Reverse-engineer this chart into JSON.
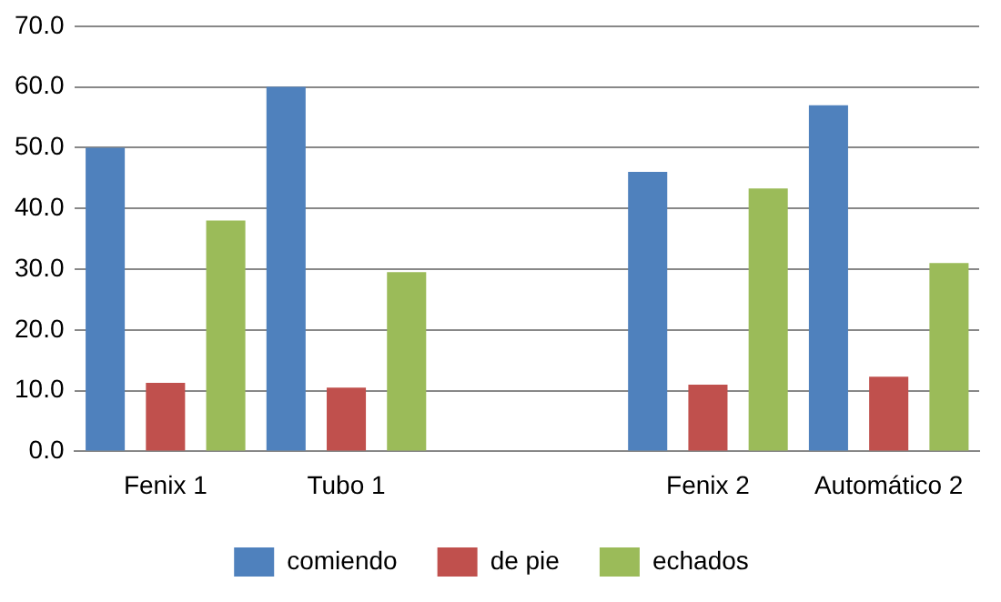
{
  "chart_data": {
    "type": "bar",
    "categories": [
      "Fenix 1",
      "Tubo 1",
      null,
      "Fenix 2",
      "Automático 2"
    ],
    "series": [
      {
        "name": "comiendo",
        "color": "#4f81bd",
        "values": [
          50,
          60,
          null,
          46,
          57
        ]
      },
      {
        "name": "de pie",
        "color": "#c0504d",
        "values": [
          11.3,
          10.5,
          null,
          11,
          12.3
        ]
      },
      {
        "name": "echados",
        "color": "#9bbb59",
        "values": [
          38,
          29.5,
          null,
          43.3,
          31
        ]
      }
    ],
    "ylim": [
      0,
      70
    ],
    "yticks": [
      {
        "value": 0,
        "label": "0.0"
      },
      {
        "value": 10,
        "label": "10.0"
      },
      {
        "value": 20,
        "label": "20.0"
      },
      {
        "value": 30,
        "label": "30.0"
      },
      {
        "value": 40,
        "label": "40.0"
      },
      {
        "value": 50,
        "label": "50.0"
      },
      {
        "value": 60,
        "label": "60.0"
      },
      {
        "value": 70,
        "label": "70.0"
      }
    ],
    "grid": "y",
    "legend": "bottom"
  }
}
